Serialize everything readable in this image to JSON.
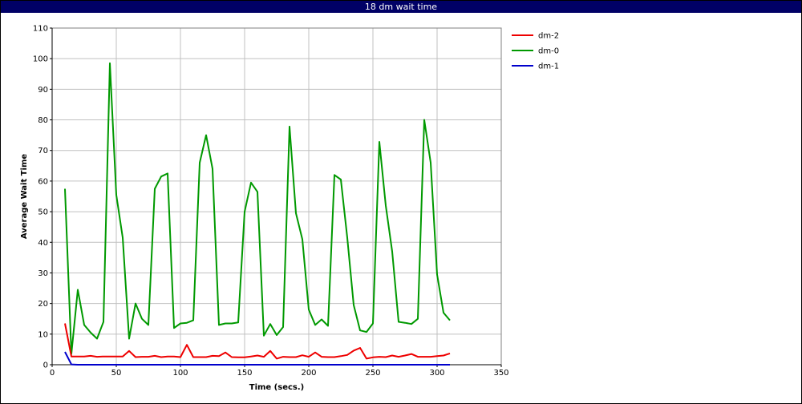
{
  "window": {
    "title": "18 dm wait time"
  },
  "chart_data": {
    "type": "line",
    "title": "18 dm wait time",
    "xlabel": "Time (secs.)",
    "ylabel": "Average Wait Time",
    "xlim": [
      0,
      350
    ],
    "ylim": [
      0,
      110
    ],
    "xticks": [
      0,
      50,
      100,
      150,
      200,
      250,
      300,
      350
    ],
    "yticks": [
      0,
      10,
      20,
      30,
      40,
      50,
      60,
      70,
      80,
      90,
      100,
      110
    ],
    "grid": true,
    "legend_position": "top-right (outside plot)",
    "series": [
      {
        "name": "dm-2",
        "color": "#ee0000",
        "x": [
          10,
          15,
          20,
          25,
          30,
          35,
          40,
          45,
          50,
          55,
          60,
          65,
          70,
          75,
          80,
          85,
          90,
          95,
          100,
          105,
          110,
          115,
          120,
          125,
          130,
          135,
          140,
          145,
          150,
          155,
          160,
          165,
          170,
          175,
          180,
          185,
          190,
          195,
          200,
          205,
          210,
          215,
          220,
          225,
          230,
          235,
          240,
          245,
          250,
          255,
          260,
          265,
          270,
          275,
          280,
          285,
          290,
          295,
          300,
          305,
          310
        ],
        "y": [
          13.5,
          2.7,
          2.7,
          2.7,
          2.9,
          2.6,
          2.7,
          2.7,
          2.7,
          2.7,
          4.5,
          2.5,
          2.6,
          2.6,
          2.9,
          2.5,
          2.7,
          2.7,
          2.5,
          6.5,
          2.5,
          2.5,
          2.5,
          2.9,
          2.8,
          4.0,
          2.5,
          2.4,
          2.4,
          2.7,
          3.0,
          2.6,
          4.5,
          2.0,
          2.6,
          2.5,
          2.5,
          3.1,
          2.6,
          4.0,
          2.6,
          2.5,
          2.5,
          2.8,
          3.2,
          4.6,
          5.5,
          2.0,
          2.4,
          2.6,
          2.5,
          3.0,
          2.6,
          3.0,
          3.5,
          2.6,
          2.6,
          2.6,
          2.8,
          3.0,
          3.7
        ]
      },
      {
        "name": "dm-0",
        "color": "#009900",
        "x": [
          10,
          15,
          20,
          25,
          30,
          35,
          40,
          45,
          50,
          55,
          60,
          65,
          70,
          75,
          80,
          85,
          90,
          95,
          100,
          105,
          110,
          115,
          120,
          125,
          130,
          135,
          140,
          145,
          150,
          155,
          160,
          165,
          170,
          175,
          180,
          185,
          190,
          195,
          200,
          205,
          210,
          215,
          220,
          225,
          230,
          235,
          240,
          245,
          250,
          255,
          260,
          265,
          270,
          275,
          280,
          285,
          290,
          295,
          300,
          305,
          310
        ],
        "y": [
          57.5,
          3.5,
          24.5,
          13.0,
          10.5,
          8.5,
          14.0,
          98.5,
          55.5,
          41.5,
          8.5,
          20.0,
          15.0,
          13.0,
          57.5,
          61.5,
          62.5,
          12.0,
          13.5,
          13.7,
          14.5,
          66.0,
          75.0,
          64.0,
          13.0,
          13.5,
          13.5,
          13.8,
          50.0,
          59.5,
          56.5,
          9.5,
          13.3,
          9.7,
          12.3,
          77.8,
          49.5,
          41.0,
          18.0,
          13.0,
          14.8,
          12.7,
          62.0,
          60.5,
          41.5,
          19.5,
          11.2,
          10.7,
          13.5,
          72.8,
          52.0,
          37.0,
          14.0,
          13.7,
          13.3,
          15.0,
          80.0,
          66.0,
          29.5,
          17.0,
          14.5
        ]
      },
      {
        "name": "dm-1",
        "color": "#0000cc",
        "x": [
          10,
          15,
          20,
          25,
          30,
          35,
          40,
          45,
          50,
          55,
          60,
          65,
          70,
          75,
          80,
          85,
          90,
          95,
          100,
          105,
          110,
          115,
          120,
          125,
          130,
          135,
          140,
          145,
          150,
          155,
          160,
          165,
          170,
          175,
          180,
          185,
          190,
          195,
          200,
          205,
          210,
          215,
          220,
          225,
          230,
          235,
          240,
          245,
          250,
          255,
          260,
          265,
          270,
          275,
          280,
          285,
          290,
          295,
          300,
          305,
          310
        ],
        "y": [
          4.2,
          0.1,
          0,
          0,
          0,
          0,
          0,
          0,
          0,
          0,
          0,
          0,
          0,
          0,
          0,
          0,
          0,
          0,
          0,
          0,
          0,
          0,
          0,
          0,
          0,
          0,
          0,
          0,
          0,
          0,
          0,
          0,
          0,
          0,
          0,
          0,
          0,
          0,
          0,
          0,
          0,
          0,
          0,
          0,
          0,
          0,
          0,
          0,
          0,
          0,
          0,
          0,
          0,
          0,
          0,
          0,
          0,
          0,
          0,
          0,
          0
        ]
      }
    ]
  }
}
